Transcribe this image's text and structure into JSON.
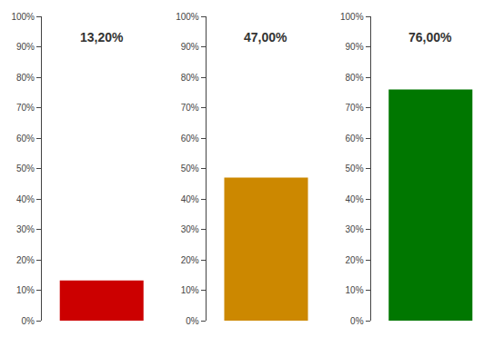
{
  "chart_data": [
    {
      "type": "bar",
      "categories": [
        null
      ],
      "values": [
        0.132
      ],
      "value_labels": [
        "13,20%"
      ],
      "color": "#CC0000",
      "data_labels": true,
      "grid": false,
      "tick_labels": "y",
      "ylim": [
        0,
        1
      ],
      "yticks": [
        {
          "value": 0,
          "label": "0%"
        },
        {
          "value": 0.1,
          "label": "10%"
        },
        {
          "value": 0.2,
          "label": "20%"
        },
        {
          "value": 0.3,
          "label": "30%"
        },
        {
          "value": 0.4,
          "label": "40%"
        },
        {
          "value": 0.5,
          "label": "50%"
        },
        {
          "value": 0.6,
          "label": "60%"
        },
        {
          "value": 0.7,
          "label": "70%"
        },
        {
          "value": 0.8,
          "label": "80%"
        },
        {
          "value": 0.9,
          "label": "90%"
        },
        {
          "value": 1.0,
          "label": "100%"
        }
      ]
    },
    {
      "type": "bar",
      "categories": [
        null
      ],
      "values": [
        0.47
      ],
      "value_labels": [
        "47,00%"
      ],
      "color": "#CC8800",
      "data_labels": true,
      "grid": false,
      "tick_labels": "y",
      "ylim": [
        0,
        1
      ],
      "yticks": [
        {
          "value": 0,
          "label": "0%"
        },
        {
          "value": 0.1,
          "label": "10%"
        },
        {
          "value": 0.2,
          "label": "20%"
        },
        {
          "value": 0.3,
          "label": "30%"
        },
        {
          "value": 0.4,
          "label": "40%"
        },
        {
          "value": 0.5,
          "label": "50%"
        },
        {
          "value": 0.6,
          "label": "60%"
        },
        {
          "value": 0.7,
          "label": "70%"
        },
        {
          "value": 0.8,
          "label": "80%"
        },
        {
          "value": 0.9,
          "label": "90%"
        },
        {
          "value": 1.0,
          "label": "100%"
        }
      ]
    },
    {
      "type": "bar",
      "categories": [
        null
      ],
      "values": [
        0.76
      ],
      "value_labels": [
        "76,00%"
      ],
      "color": "#007700",
      "data_labels": true,
      "grid": false,
      "tick_labels": "y",
      "ylim": [
        0,
        1
      ],
      "yticks": [
        {
          "value": 0,
          "label": "0%"
        },
        {
          "value": 0.1,
          "label": "10%"
        },
        {
          "value": 0.2,
          "label": "20%"
        },
        {
          "value": 0.3,
          "label": "30%"
        },
        {
          "value": 0.4,
          "label": "40%"
        },
        {
          "value": 0.5,
          "label": "50%"
        },
        {
          "value": 0.6,
          "label": "60%"
        },
        {
          "value": 0.7,
          "label": "70%"
        },
        {
          "value": 0.8,
          "label": "80%"
        },
        {
          "value": 0.9,
          "label": "90%"
        },
        {
          "value": 1.0,
          "label": "100%"
        }
      ]
    }
  ]
}
